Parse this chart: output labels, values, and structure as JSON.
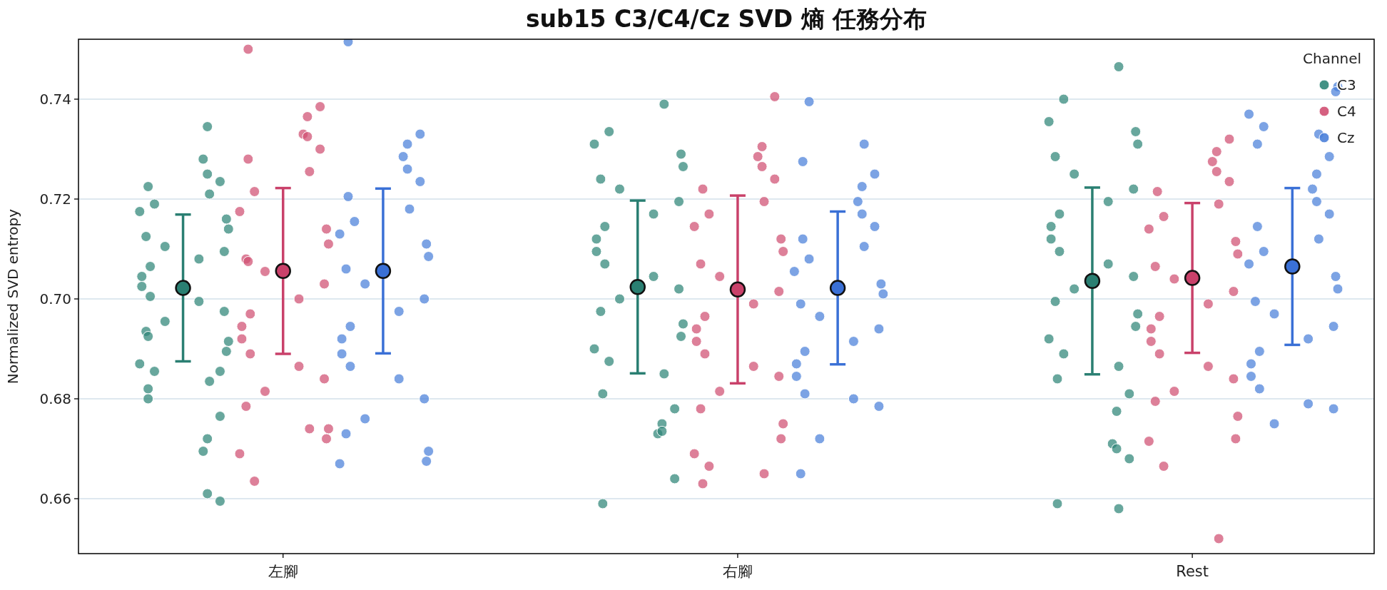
{
  "chart_data": {
    "type": "scatter",
    "title": "sub15 C3/C4/Cz SVD 熵 任務分布",
    "ylabel": "Normalized SVD entropy",
    "categories": [
      "左腳",
      "右腳",
      "Rest"
    ],
    "legend_title": "Channel",
    "legend": "top right",
    "grid": "y",
    "marker": "circle",
    "ylim": [
      0.649,
      0.752
    ],
    "yticks": [
      {
        "value": 0.66,
        "label": "0.66"
      },
      {
        "value": 0.68,
        "label": "0.68"
      },
      {
        "value": 0.7,
        "label": "0.70"
      },
      {
        "value": 0.72,
        "label": "0.72"
      },
      {
        "value": 0.74,
        "label": "0.74"
      }
    ],
    "series": [
      {
        "name": "C3",
        "color": "#2e8577",
        "x": [
          "左腳",
          "左腳",
          "左腳",
          "左腳",
          "左腳",
          "左腳",
          "左腳",
          "左腳",
          "左腳",
          "左腳",
          "左腳",
          "左腳",
          "左腳",
          "左腳",
          "左腳",
          "左腳",
          "左腳",
          "左腳",
          "左腳",
          "左腳",
          "左腳",
          "左腳",
          "左腳",
          "左腳",
          "左腳",
          "左腳",
          "左腳",
          "左腳",
          "左腳",
          "左腳",
          "左腳",
          "左腳",
          "左腳",
          "左腳",
          "左腳",
          "左腳",
          "右腳",
          "右腳",
          "右腳",
          "右腳",
          "右腳",
          "右腳",
          "右腳",
          "右腳",
          "右腳",
          "右腳",
          "右腳",
          "右腳",
          "右腳",
          "右腳",
          "右腳",
          "右腳",
          "右腳",
          "右腳",
          "右腳",
          "右腳",
          "右腳",
          "右腳",
          "右腳",
          "右腳",
          "右腳",
          "右腳",
          "右腳",
          "右腳",
          "右腳",
          "Rest",
          "Rest",
          "Rest",
          "Rest",
          "Rest",
          "Rest",
          "Rest",
          "Rest",
          "Rest",
          "Rest",
          "Rest",
          "Rest",
          "Rest",
          "Rest",
          "Rest",
          "Rest",
          "Rest",
          "Rest",
          "Rest",
          "Rest",
          "Rest",
          "Rest",
          "Rest",
          "Rest",
          "Rest",
          "Rest",
          "Rest",
          "Rest",
          "Rest",
          "Rest"
        ],
        "values": [
          0.682,
          0.6595,
          0.661,
          0.6695,
          0.672,
          0.6765,
          0.68,
          0.6835,
          0.6855,
          0.687,
          0.6895,
          0.6915,
          0.6935,
          0.6955,
          0.6975,
          0.6995,
          0.7005,
          0.7025,
          0.7045,
          0.7065,
          0.708,
          0.7095,
          0.7105,
          0.7125,
          0.714,
          0.716,
          0.7175,
          0.719,
          0.721,
          0.7225,
          0.7235,
          0.725,
          0.728,
          0.7345,
          0.6855,
          0.6925,
          0.739,
          0.7335,
          0.731,
          0.729,
          0.7265,
          0.724,
          0.722,
          0.7195,
          0.717,
          0.7145,
          0.712,
          0.7095,
          0.707,
          0.7045,
          0.702,
          0.7,
          0.6975,
          0.695,
          0.6925,
          0.69,
          0.6875,
          0.685,
          0.681,
          0.678,
          0.675,
          0.673,
          0.6735,
          0.664,
          0.659,
          0.7465,
          0.74,
          0.7355,
          0.7335,
          0.731,
          0.7285,
          0.725,
          0.722,
          0.7195,
          0.717,
          0.7145,
          0.712,
          0.7095,
          0.707,
          0.7045,
          0.702,
          0.6995,
          0.697,
          0.6945,
          0.692,
          0.689,
          0.6865,
          0.684,
          0.681,
          0.6775,
          0.671,
          0.67,
          0.668,
          0.659,
          0.658
        ]
      },
      {
        "name": "C4",
        "color": "#d04f72",
        "x": [
          "左腳",
          "左腳",
          "左腳",
          "左腳",
          "左腳",
          "左腳",
          "左腳",
          "左腳",
          "左腳",
          "左腳",
          "左腳",
          "左腳",
          "左腳",
          "左腳",
          "左腳",
          "左腳",
          "左腳",
          "左腳",
          "左腳",
          "左腳",
          "左腳",
          "左腳",
          "左腳",
          "左腳",
          "左腳",
          "左腳",
          "左腳",
          "左腳",
          "左腳",
          "左腳",
          "右腳",
          "右腳",
          "右腳",
          "右腳",
          "右腳",
          "右腳",
          "右腳",
          "右腳",
          "右腳",
          "右腳",
          "右腳",
          "右腳",
          "右腳",
          "右腳",
          "右腳",
          "右腳",
          "右腳",
          "右腳",
          "右腳",
          "右腳",
          "右腳",
          "右腳",
          "右腳",
          "右腳",
          "右腳",
          "右腳",
          "右腳",
          "右腳",
          "右腳",
          "Rest",
          "Rest",
          "Rest",
          "Rest",
          "Rest",
          "Rest",
          "Rest",
          "Rest",
          "Rest",
          "Rest",
          "Rest",
          "Rest",
          "Rest",
          "Rest",
          "Rest",
          "Rest",
          "Rest",
          "Rest",
          "Rest",
          "Rest",
          "Rest",
          "Rest",
          "Rest",
          "Rest",
          "Rest",
          "Rest",
          "Rest",
          "Rest"
        ],
        "values": [
          0.75,
          0.7385,
          0.7365,
          0.733,
          0.7325,
          0.73,
          0.728,
          0.7255,
          0.7215,
          0.7175,
          0.714,
          0.711,
          0.708,
          0.7055,
          0.703,
          0.7,
          0.697,
          0.6945,
          0.692,
          0.689,
          0.6865,
          0.684,
          0.6815,
          0.6785,
          0.674,
          0.672,
          0.669,
          0.6635,
          0.674,
          0.7075,
          0.7405,
          0.7305,
          0.7285,
          0.7265,
          0.724,
          0.722,
          0.7195,
          0.717,
          0.7145,
          0.712,
          0.7095,
          0.707,
          0.7045,
          0.7015,
          0.699,
          0.6965,
          0.694,
          0.6915,
          0.689,
          0.6865,
          0.6845,
          0.6815,
          0.678,
          0.675,
          0.672,
          0.669,
          0.6665,
          0.665,
          0.663,
          0.732,
          0.7295,
          0.7275,
          0.7255,
          0.7235,
          0.7215,
          0.719,
          0.7165,
          0.714,
          0.7115,
          0.709,
          0.7065,
          0.704,
          0.7015,
          0.699,
          0.6965,
          0.694,
          0.6915,
          0.689,
          0.6865,
          0.684,
          0.6815,
          0.6795,
          0.6765,
          0.672,
          0.6715,
          0.6665,
          0.652
        ]
      },
      {
        "name": "Cz",
        "color": "#4a7fd9",
        "x": [
          "左腳",
          "左腳",
          "左腳",
          "左腳",
          "左腳",
          "左腳",
          "左腳",
          "左腳",
          "左腳",
          "左腳",
          "左腳",
          "左腳",
          "左腳",
          "左腳",
          "左腳",
          "左腳",
          "左腳",
          "左腳",
          "左腳",
          "左腳",
          "左腳",
          "左腳",
          "左腳",
          "左腳",
          "左腳",
          "左腳",
          "左腳",
          "右腳",
          "右腳",
          "右腳",
          "右腳",
          "右腳",
          "右腳",
          "右腳",
          "右腳",
          "右腳",
          "右腳",
          "右腳",
          "右腳",
          "右腳",
          "右腳",
          "右腳",
          "右腳",
          "右腳",
          "右腳",
          "右腳",
          "右腳",
          "右腳",
          "右腳",
          "右腳",
          "右腳",
          "右腳",
          "右腳",
          "Rest",
          "Rest",
          "Rest",
          "Rest",
          "Rest",
          "Rest",
          "Rest",
          "Rest",
          "Rest",
          "Rest",
          "Rest",
          "Rest",
          "Rest",
          "Rest",
          "Rest",
          "Rest",
          "Rest",
          "Rest",
          "Rest",
          "Rest",
          "Rest",
          "Rest",
          "Rest",
          "Rest",
          "Rest",
          "Rest",
          "Rest",
          "Rest"
        ],
        "values": [
          0.7515,
          0.733,
          0.731,
          0.7285,
          0.726,
          0.7235,
          0.7205,
          0.718,
          0.7155,
          0.713,
          0.711,
          0.7085,
          0.706,
          0.703,
          0.7,
          0.6975,
          0.6945,
          0.692,
          0.689,
          0.6865,
          0.684,
          0.68,
          0.676,
          0.673,
          0.6695,
          0.6675,
          0.667,
          0.7395,
          0.731,
          0.7275,
          0.725,
          0.7225,
          0.7195,
          0.717,
          0.7145,
          0.712,
          0.7105,
          0.708,
          0.7055,
          0.703,
          0.701,
          0.699,
          0.6965,
          0.694,
          0.6915,
          0.6895,
          0.687,
          0.6845,
          0.681,
          0.68,
          0.6785,
          0.672,
          0.665,
          0.7425,
          0.7415,
          0.737,
          0.7345,
          0.733,
          0.731,
          0.7285,
          0.725,
          0.722,
          0.7195,
          0.717,
          0.7145,
          0.712,
          0.7095,
          0.707,
          0.7045,
          0.702,
          0.6995,
          0.697,
          0.6945,
          0.692,
          0.6895,
          0.687,
          0.6845,
          0.682,
          0.679,
          0.678,
          0.675
        ]
      },
      {
        "color": "#2a7f72",
        "x": [
          "左腳",
          "右腳",
          "Rest"
        ],
        "values": [
          0.7022,
          0.7024,
          0.7036
        ],
        "errors": [
          0.0147,
          0.0173,
          0.0187
        ]
      },
      {
        "color": "#c9416a",
        "x": [
          "左腳",
          "右腳",
          "Rest"
        ],
        "values": [
          0.7056,
          0.7019,
          0.7042
        ],
        "errors": [
          0.0166,
          0.0188,
          0.015
        ]
      },
      {
        "color": "#3a70d6",
        "x": [
          "左腳",
          "右腳",
          "Rest"
        ],
        "values": [
          0.7056,
          0.7022,
          0.7065
        ],
        "errors": [
          0.0165,
          0.0153,
          0.0157
        ]
      }
    ]
  }
}
